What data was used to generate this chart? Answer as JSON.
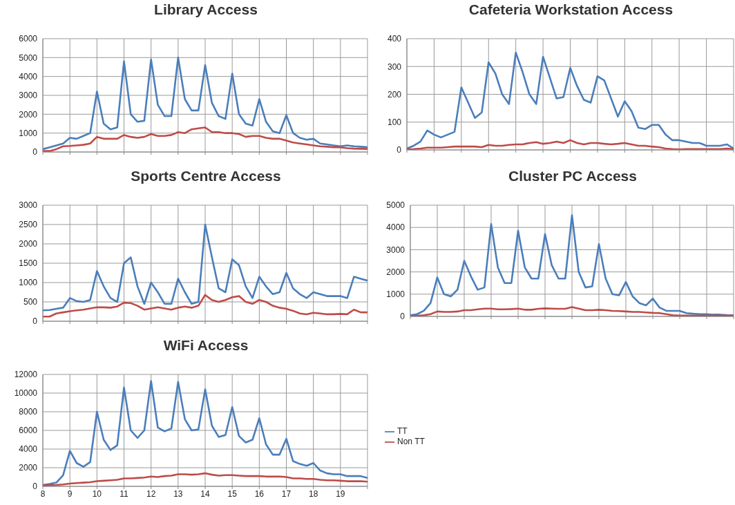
{
  "chart_data": [
    {
      "type": "line",
      "title": "Library Access",
      "x": [
        8,
        8.25,
        8.5,
        8.75,
        9,
        9.25,
        9.5,
        9.75,
        10,
        10.25,
        10.5,
        10.75,
        11,
        11.25,
        11.5,
        11.75,
        12,
        12.25,
        12.5,
        12.75,
        13,
        13.25,
        13.5,
        13.75,
        14,
        14.25,
        14.5,
        14.75,
        15,
        15.25,
        15.5,
        15.75,
        16,
        16.25,
        16.5,
        16.75,
        17,
        17.25,
        17.5,
        17.75,
        18,
        18.25,
        18.5,
        18.75,
        19,
        19.25,
        19.5,
        19.75,
        20
      ],
      "xlim": [
        8,
        20
      ],
      "xticks": [
        {
          "value": 8,
          "label": null
        },
        {
          "value": 9,
          "label": null
        },
        {
          "value": 10,
          "label": null
        },
        {
          "value": 11,
          "label": null
        },
        {
          "value": 12,
          "label": null
        },
        {
          "value": 13,
          "label": null
        },
        {
          "value": 14,
          "label": null
        },
        {
          "value": 15,
          "label": null
        },
        {
          "value": 16,
          "label": null
        },
        {
          "value": 17,
          "label": null
        },
        {
          "value": 18,
          "label": null
        },
        {
          "value": 19,
          "label": null
        },
        {
          "value": 20,
          "label": null
        }
      ],
      "ylim": [
        0,
        6000
      ],
      "yticks": [
        0,
        1000,
        2000,
        3000,
        4000,
        5000,
        6000
      ],
      "grid": true,
      "marker": "none",
      "tick_labels": "y",
      "series": [
        {
          "color": "#4a7ebb",
          "values": [
            150,
            250,
            350,
            450,
            750,
            700,
            850,
            1000,
            3200,
            1500,
            1200,
            1300,
            4800,
            2000,
            1600,
            1650,
            4900,
            2500,
            1900,
            1900,
            5000,
            2800,
            2200,
            2200,
            4600,
            2600,
            1900,
            1750,
            4150,
            2000,
            1500,
            1400,
            2800,
            1600,
            1100,
            1000,
            1950,
            1000,
            750,
            650,
            700,
            450,
            400,
            350,
            300,
            350,
            300,
            280,
            250
          ]
        },
        {
          "color": "#be4b48",
          "values": [
            50,
            50,
            150,
            300,
            320,
            350,
            380,
            450,
            800,
            700,
            700,
            700,
            900,
            800,
            750,
            800,
            950,
            850,
            850,
            900,
            1050,
            1000,
            1200,
            1250,
            1300,
            1050,
            1050,
            1000,
            1000,
            950,
            800,
            850,
            850,
            750,
            700,
            700,
            600,
            500,
            450,
            400,
            350,
            300,
            280,
            250,
            250,
            200,
            180,
            170,
            160
          ]
        }
      ]
    },
    {
      "type": "line",
      "title": "Cafeteria Workstation Access",
      "categories": [
        null,
        null,
        null,
        null,
        null,
        null,
        null,
        null,
        null,
        null,
        null,
        null,
        null,
        null,
        null,
        null,
        null,
        null,
        null,
        null,
        null,
        null,
        null,
        null,
        null,
        null,
        null,
        null,
        null,
        null,
        null,
        null,
        null,
        null,
        null,
        null,
        null,
        null,
        null,
        null,
        null,
        null,
        null,
        null,
        null,
        null,
        null,
        null,
        null
      ],
      "ylim": [
        0,
        400
      ],
      "yticks": [
        0,
        100,
        200,
        300,
        400
      ],
      "grid": true,
      "marker": "none",
      "series": [
        {
          "color": "#4a7ebb",
          "values": [
            5,
            15,
            30,
            70,
            55,
            45,
            55,
            65,
            225,
            170,
            115,
            135,
            315,
            275,
            200,
            165,
            350,
            280,
            200,
            165,
            335,
            260,
            185,
            190,
            295,
            230,
            180,
            170,
            265,
            250,
            185,
            120,
            175,
            140,
            80,
            75,
            90,
            90,
            55,
            35,
            35,
            30,
            25,
            25,
            15,
            15,
            15,
            20,
            5
          ]
        },
        {
          "color": "#be4b48",
          "values": [
            2,
            3,
            5,
            8,
            8,
            8,
            10,
            12,
            12,
            12,
            12,
            10,
            18,
            15,
            15,
            18,
            20,
            20,
            25,
            28,
            22,
            25,
            30,
            25,
            35,
            25,
            20,
            25,
            25,
            22,
            20,
            22,
            25,
            20,
            15,
            15,
            12,
            10,
            5,
            3,
            2,
            3,
            3,
            3,
            3,
            3,
            3,
            5,
            3
          ]
        }
      ]
    },
    {
      "type": "line",
      "title": "Sports Centre Access",
      "x": [
        8,
        8.25,
        8.5,
        8.75,
        9,
        9.25,
        9.5,
        9.75,
        10,
        10.25,
        10.5,
        10.75,
        11,
        11.25,
        11.5,
        11.75,
        12,
        12.25,
        12.5,
        12.75,
        13,
        13.25,
        13.5,
        13.75,
        14,
        14.25,
        14.5,
        14.75,
        15,
        15.25,
        15.5,
        15.75,
        16,
        16.25,
        16.5,
        16.75,
        17,
        17.25,
        17.5,
        17.75,
        18,
        18.25,
        18.5,
        18.75,
        19,
        19.25,
        19.5,
        19.75,
        20
      ],
      "xlim": [
        8,
        20
      ],
      "xticks": [
        {
          "value": 8,
          "label": null
        },
        {
          "value": 9,
          "label": null
        },
        {
          "value": 10,
          "label": null
        },
        {
          "value": 11,
          "label": null
        },
        {
          "value": 12,
          "label": null
        },
        {
          "value": 13,
          "label": null
        },
        {
          "value": 14,
          "label": null
        },
        {
          "value": 15,
          "label": null
        },
        {
          "value": 16,
          "label": null
        },
        {
          "value": 17,
          "label": null
        },
        {
          "value": 18,
          "label": null
        },
        {
          "value": 19,
          "label": null
        },
        {
          "value": 20,
          "label": null
        }
      ],
      "ylim": [
        0,
        3000
      ],
      "yticks": [
        0,
        500,
        1000,
        1500,
        2000,
        2500,
        3000
      ],
      "grid": true,
      "marker": "none",
      "tick_labels": "y",
      "series": [
        {
          "color": "#4a7ebb",
          "values": [
            280,
            290,
            320,
            350,
            600,
            520,
            500,
            550,
            1300,
            900,
            600,
            500,
            1500,
            1650,
            900,
            450,
            1000,
            750,
            450,
            450,
            1100,
            750,
            450,
            500,
            2500,
            1650,
            850,
            750,
            1600,
            1450,
            900,
            600,
            1150,
            900,
            700,
            750,
            1250,
            850,
            700,
            600,
            750,
            700,
            650,
            650,
            650,
            600,
            1150,
            1100,
            1050
          ]
        },
        {
          "color": "#be4b48",
          "values": [
            120,
            120,
            200,
            230,
            260,
            280,
            300,
            330,
            360,
            360,
            350,
            380,
            480,
            470,
            400,
            300,
            330,
            360,
            330,
            300,
            350,
            380,
            350,
            400,
            680,
            550,
            500,
            550,
            620,
            650,
            500,
            450,
            550,
            500,
            400,
            350,
            320,
            270,
            200,
            180,
            220,
            200,
            180,
            180,
            190,
            180,
            300,
            230,
            230
          ]
        }
      ]
    },
    {
      "type": "line",
      "title": "Cluster PC Access",
      "categories": [
        null,
        null,
        null,
        null,
        null,
        null,
        null,
        null,
        null,
        null,
        null,
        null,
        null,
        null,
        null,
        null,
        null,
        null,
        null,
        null,
        null,
        null,
        null,
        null,
        null,
        null,
        null,
        null,
        null,
        null,
        null,
        null,
        null,
        null,
        null,
        null,
        null,
        null,
        null,
        null,
        null,
        null,
        null,
        null,
        null,
        null,
        null,
        null,
        null
      ],
      "ylim": [
        0,
        5000
      ],
      "yticks": [
        0,
        1000,
        2000,
        3000,
        4000,
        5000
      ],
      "grid": true,
      "marker": "none",
      "series": [
        {
          "color": "#4a7ebb",
          "values": [
            50,
            100,
            250,
            600,
            1750,
            1000,
            900,
            1200,
            2500,
            1800,
            1200,
            1300,
            4150,
            2200,
            1500,
            1500,
            3850,
            2200,
            1700,
            1700,
            3700,
            2300,
            1700,
            1700,
            4550,
            2000,
            1300,
            1350,
            3250,
            1700,
            1000,
            950,
            1550,
            900,
            600,
            500,
            800,
            400,
            250,
            250,
            250,
            150,
            120,
            100,
            100,
            80,
            80,
            60,
            50
          ]
        },
        {
          "color": "#be4b48",
          "values": [
            20,
            30,
            50,
            100,
            220,
            200,
            200,
            220,
            280,
            280,
            320,
            350,
            350,
            320,
            320,
            330,
            350,
            300,
            300,
            340,
            360,
            350,
            340,
            340,
            420,
            350,
            280,
            280,
            300,
            280,
            250,
            240,
            220,
            200,
            200,
            180,
            160,
            150,
            100,
            50,
            40,
            40,
            40,
            40,
            40,
            40,
            40,
            40,
            40
          ]
        }
      ]
    },
    {
      "type": "line",
      "title": "WiFi Access",
      "x": [
        8,
        8.25,
        8.5,
        8.75,
        9,
        9.25,
        9.5,
        9.75,
        10,
        10.25,
        10.5,
        10.75,
        11,
        11.25,
        11.5,
        11.75,
        12,
        12.25,
        12.5,
        12.75,
        13,
        13.25,
        13.5,
        13.75,
        14,
        14.25,
        14.5,
        14.75,
        15,
        15.25,
        15.5,
        15.75,
        16,
        16.25,
        16.5,
        16.75,
        17,
        17.25,
        17.5,
        17.75,
        18,
        18.25,
        18.5,
        18.75,
        19,
        19.25,
        19.5,
        19.75,
        20
      ],
      "xlim": [
        8,
        20
      ],
      "xticks": [
        8,
        9,
        10,
        11,
        12,
        13,
        14,
        15,
        16,
        17,
        18,
        19,
        {
          "value": 20,
          "label": null
        }
      ],
      "ylim": [
        0,
        12000
      ],
      "yticks": [
        0,
        2000,
        4000,
        6000,
        8000,
        10000,
        12000
      ],
      "grid": true,
      "marker": "none",
      "legend": "right",
      "series": [
        {
          "name": "TT",
          "color": "#4a7ebb",
          "values": [
            150,
            250,
            400,
            1200,
            3800,
            2500,
            2100,
            2600,
            8000,
            5000,
            3900,
            4400,
            10600,
            6000,
            5200,
            6000,
            11300,
            6300,
            5900,
            6200,
            11200,
            7200,
            6000,
            6100,
            10400,
            6500,
            5300,
            5500,
            8500,
            5400,
            4700,
            5000,
            7300,
            4500,
            3400,
            3400,
            5100,
            2700,
            2400,
            2200,
            2500,
            1700,
            1400,
            1300,
            1300,
            1100,
            1100,
            1100,
            900
          ]
        },
        {
          "name": "Non TT",
          "color": "#be4b48",
          "values": [
            100,
            120,
            150,
            200,
            300,
            350,
            400,
            450,
            550,
            600,
            650,
            700,
            850,
            850,
            900,
            950,
            1050,
            1000,
            1100,
            1150,
            1300,
            1300,
            1250,
            1300,
            1400,
            1250,
            1150,
            1200,
            1200,
            1150,
            1100,
            1100,
            1100,
            1050,
            1050,
            1050,
            1000,
            850,
            850,
            800,
            800,
            700,
            650,
            650,
            600,
            550,
            550,
            550,
            500
          ]
        }
      ]
    }
  ]
}
